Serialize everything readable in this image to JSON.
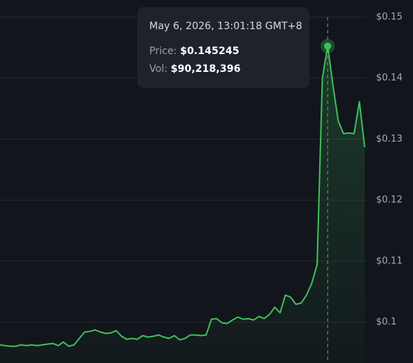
{
  "chart_data": {
    "type": "line",
    "series": [
      {
        "name": null,
        "color": "#3fbf5c",
        "values": [
          0.09627,
          0.09615,
          0.09604,
          0.09604,
          0.09627,
          0.09615,
          0.09627,
          0.09615,
          0.09627,
          0.09639,
          0.09651,
          0.09615,
          0.09674,
          0.09604,
          0.09627,
          0.09732,
          0.09837,
          0.09848,
          0.09872,
          0.09837,
          0.09814,
          0.09825,
          0.0986,
          0.09767,
          0.0972,
          0.09732,
          0.0972,
          0.09779,
          0.09755,
          0.09767,
          0.0979,
          0.09755,
          0.09732,
          0.09779,
          0.09709,
          0.09732,
          0.0979,
          0.0979,
          0.09779,
          0.0979,
          0.10047,
          0.10058,
          0.09988,
          0.09977,
          0.10035,
          0.10082,
          0.10047,
          0.10058,
          0.10035,
          0.10093,
          0.10058,
          0.10128,
          0.10245,
          0.10152,
          0.10443,
          0.10408,
          0.10291,
          0.10315,
          0.10443,
          0.10641,
          0.10944,
          0.13998,
          0.145245,
          0.13881,
          0.13298,
          0.13089,
          0.131,
          0.13089,
          0.13613,
          0.12867
        ]
      }
    ],
    "ylim": [
      0.0933,
      0.1528
    ],
    "yticks": [
      {
        "value": 0.1,
        "label": "$0.1"
      },
      {
        "value": 0.11,
        "label": "$0.11"
      },
      {
        "value": 0.12,
        "label": "$0.12"
      },
      {
        "value": 0.13,
        "label": "$0.13"
      },
      {
        "value": 0.14,
        "label": "$0.14"
      },
      {
        "value": 0.15,
        "label": "$0.15"
      }
    ],
    "grid": true,
    "tooltip": {
      "time": "May 6, 2026, 13:01:18 GMT+8",
      "price_label": "Price:",
      "price": {
        "value": 0.145245,
        "label": "$0.145245"
      },
      "volume_label": "Vol:",
      "volume": {
        "value": 90218396,
        "label": "$90,218,396"
      }
    }
  }
}
